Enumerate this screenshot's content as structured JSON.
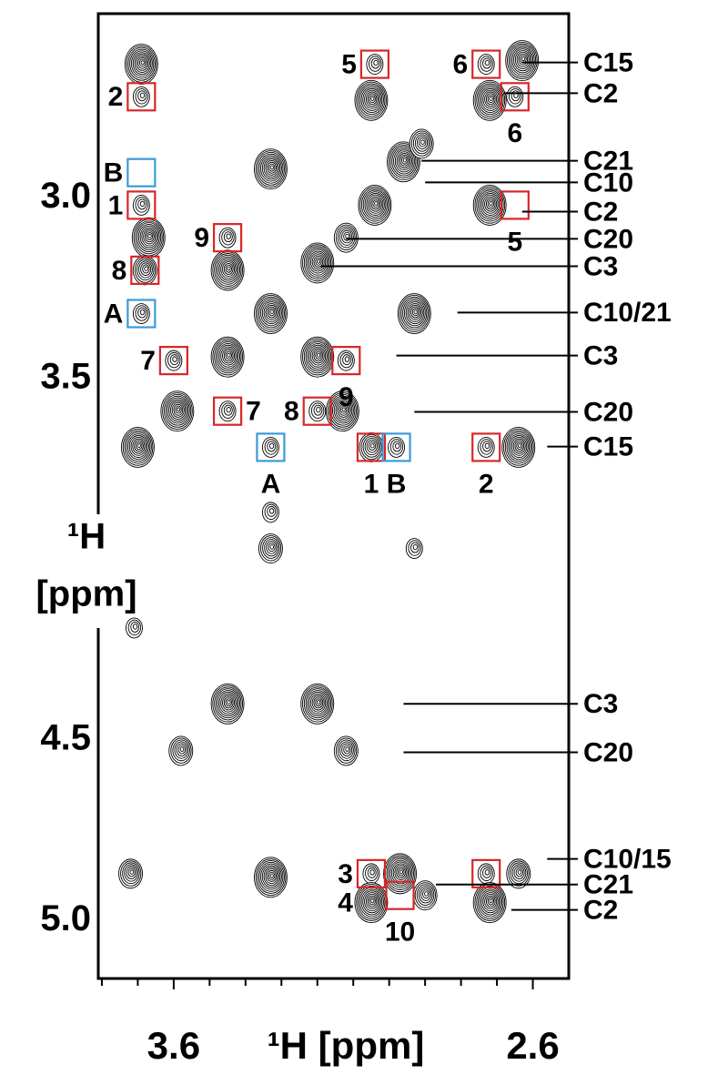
{
  "chart_data": {
    "type": "contour",
    "x_label": "¹H [ppm]",
    "y_label": [
      "¹H",
      "[ppm]"
    ],
    "xlim": [
      3.81,
      2.5
    ],
    "ylim": [
      2.5,
      5.17
    ],
    "xticks": [
      3.6,
      2.6
    ],
    "xminorticks": [
      3.8,
      3.7,
      3.5,
      3.4,
      3.3,
      3.2,
      3.1,
      3.0,
      2.9,
      2.8,
      2.7
    ],
    "yticks": [
      {
        "value": 3,
        "label": "3.0"
      },
      3.5,
      4.5,
      {
        "value": 5,
        "label": "5.0"
      }
    ],
    "color": "#000000",
    "peaks": {
      "x": [
        3.69,
        3.69,
        3.04,
        3.05,
        2.73,
        2.72,
        2.63,
        2.65,
        3.33,
        2.96,
        2.91,
        3.04,
        2.72,
        3.69,
        3.67,
        3.68,
        3.45,
        3.45,
        3.2,
        3.12,
        3.33,
        2.93,
        3.69,
        3.6,
        3.45,
        3.2,
        3.12,
        3.59,
        3.45,
        3.2,
        3.13,
        3.7,
        3.33,
        3.05,
        2.98,
        2.73,
        2.64,
        3.33,
        3.33,
        2.93,
        3.71,
        3.45,
        3.2,
        3.58,
        3.12,
        3.72,
        3.33,
        3.05,
        2.97,
        2.9,
        3.05,
        2.73,
        2.72,
        2.64
      ],
      "y": [
        2.64,
        2.73,
        2.64,
        2.74,
        2.64,
        2.74,
        2.63,
        2.73,
        2.93,
        2.91,
        2.86,
        3.03,
        3.03,
        3.03,
        3.12,
        3.21,
        3.12,
        3.21,
        3.19,
        3.12,
        3.33,
        3.33,
        3.33,
        3.46,
        3.45,
        3.45,
        3.46,
        3.6,
        3.6,
        3.6,
        3.6,
        3.7,
        3.7,
        3.7,
        3.7,
        3.7,
        3.7,
        3.88,
        3.98,
        3.98,
        4.2,
        4.41,
        4.41,
        4.54,
        4.54,
        4.88,
        4.89,
        4.88,
        4.88,
        4.94,
        4.96,
        4.88,
        4.96,
        4.88
      ],
      "size": [
        3,
        1,
        1,
        3,
        1,
        3,
        3,
        1,
        3,
        3,
        2,
        3,
        3,
        1,
        3,
        2,
        1,
        3,
        3,
        2,
        3,
        3,
        1,
        1,
        3,
        3,
        1,
        3,
        1,
        1,
        3,
        3,
        1,
        2,
        1,
        1,
        3,
        1,
        2,
        1,
        1,
        3,
        3,
        2,
        2,
        2,
        3,
        1,
        3,
        2,
        3,
        1,
        3,
        2
      ]
    },
    "boxes": [
      {
        "label": "5",
        "x": 3.04,
        "y": 2.64,
        "color": "#d62728",
        "side": "left"
      },
      {
        "label": "6",
        "x": 2.73,
        "y": 2.64,
        "color": "#d62728",
        "side": "left"
      },
      {
        "label": "2",
        "x": 3.69,
        "y": 2.73,
        "color": "#d62728",
        "side": "left"
      },
      {
        "label": "6",
        "x": 2.65,
        "y": 2.73,
        "color": "#d62728",
        "side": "below"
      },
      {
        "label": "B",
        "x": 3.69,
        "y": 2.94,
        "color": "#3a9ad9",
        "side": "left"
      },
      {
        "label": "1",
        "x": 3.69,
        "y": 3.03,
        "color": "#d62728",
        "side": "left"
      },
      {
        "label": "5",
        "x": 2.65,
        "y": 3.03,
        "color": "#d62728",
        "side": "below"
      },
      {
        "label": "9",
        "x": 3.45,
        "y": 3.12,
        "color": "#d62728",
        "side": "left"
      },
      {
        "label": "8",
        "x": 3.68,
        "y": 3.21,
        "color": "#d62728",
        "side": "left"
      },
      {
        "label": "A",
        "x": 3.69,
        "y": 3.33,
        "color": "#3a9ad9",
        "side": "left"
      },
      {
        "label": "7",
        "x": 3.6,
        "y": 3.46,
        "color": "#d62728",
        "side": "left"
      },
      {
        "label": "9",
        "x": 3.12,
        "y": 3.46,
        "color": "#d62728",
        "side": "below"
      },
      {
        "label": "7",
        "x": 3.45,
        "y": 3.6,
        "color": "#d62728",
        "side": "right"
      },
      {
        "label": "8",
        "x": 3.2,
        "y": 3.6,
        "color": "#d62728",
        "side": "left"
      },
      {
        "label": "A",
        "x": 3.33,
        "y": 3.7,
        "color": "#3a9ad9",
        "side": "below"
      },
      {
        "label": "1",
        "x": 3.05,
        "y": 3.7,
        "color": "#d62728",
        "side": "below"
      },
      {
        "label": "B",
        "x": 2.98,
        "y": 3.7,
        "color": "#3a9ad9",
        "side": "below"
      },
      {
        "label": "2",
        "x": 2.73,
        "y": 3.7,
        "color": "#d62728",
        "side": "below"
      },
      {
        "label": "3",
        "x": 3.05,
        "y": 4.88,
        "color": "#d62728",
        "side": "left"
      },
      {
        "label": "10",
        "x": 2.97,
        "y": 4.94,
        "color": "#d62728",
        "side": "below"
      },
      {
        "x": 2.73,
        "y": 4.88,
        "color": "#d62728"
      }
    ],
    "labels": [
      {
        "text": "4",
        "x": 3.05,
        "y": 4.96,
        "side": "left"
      }
    ],
    "right_labels": [
      {
        "text": "C15",
        "x": 2.63,
        "y": 2.635
      },
      {
        "text": "C2",
        "x": 2.68,
        "y": 2.72
      },
      {
        "text": "C21",
        "x": 2.91,
        "y": 2.907
      },
      {
        "text": "C10",
        "x": 2.9,
        "y": 2.967
      },
      {
        "text": "C2",
        "x": 2.63,
        "y": 3.048
      },
      {
        "text": "C20",
        "x": 3.12,
        "y": 3.123
      },
      {
        "text": "C3",
        "x": 3.19,
        "y": 3.199
      },
      {
        "text": "C10/21",
        "x": 2.81,
        "y": 3.327
      },
      {
        "text": "C3",
        "x": 2.98,
        "y": 3.446
      },
      {
        "text": "C20",
        "x": 2.93,
        "y": 3.602
      },
      {
        "text": "C15",
        "x": 2.56,
        "y": 3.698
      },
      {
        "text": "C3",
        "x": 2.96,
        "y": 4.41
      },
      {
        "text": "C20",
        "x": 2.96,
        "y": 4.544
      },
      {
        "text": "C10/15",
        "x": 2.56,
        "y": 4.839
      },
      {
        "text": "C21",
        "x": 2.87,
        "y": 4.91
      },
      {
        "text": "C2",
        "x": 2.66,
        "y": 4.98
      }
    ]
  }
}
